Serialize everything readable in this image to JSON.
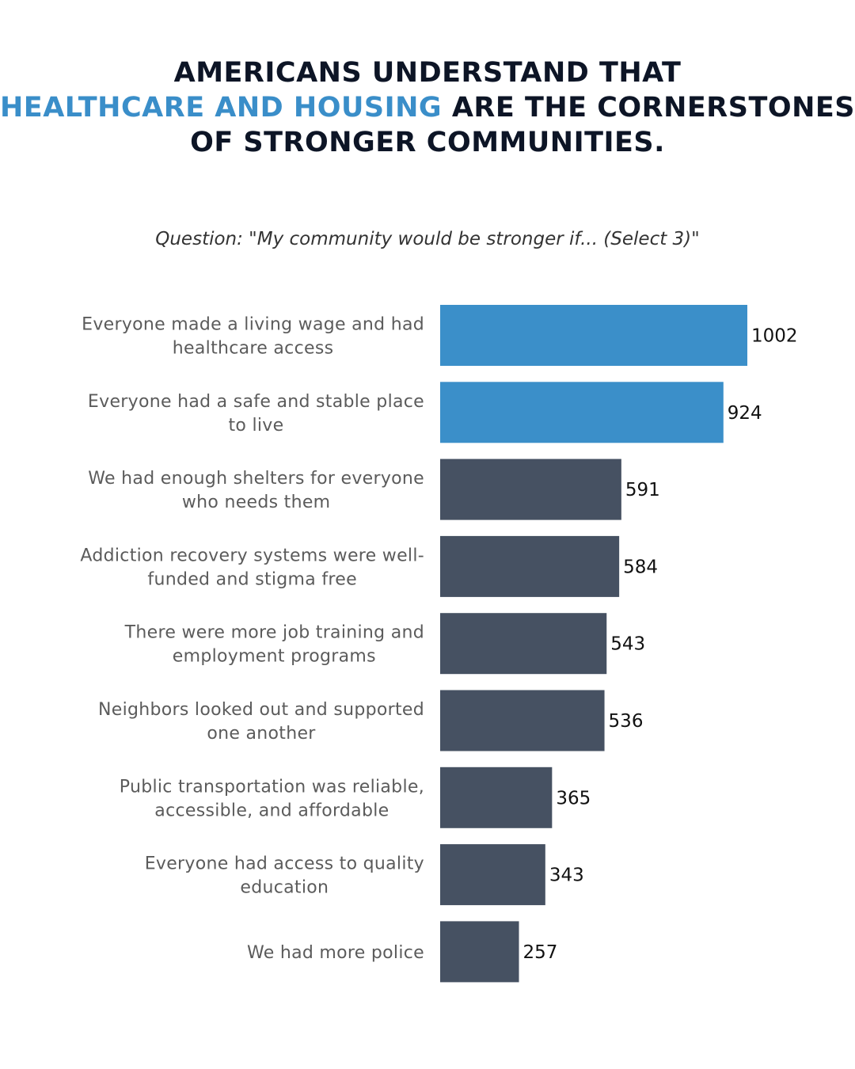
{
  "title": {
    "part1": "AMERICANS UNDERSTAND THAT",
    "highlight": "HEALTHCARE AND HOUSING",
    "part2": "ARE THE CORNERSTONES OF STRONGER COMMUNITIES."
  },
  "subtitle": "Question: \"My community would be stronger if... (Select 3)\"",
  "colors": {
    "highlight_bar": "#3b8fc9",
    "default_bar": "#465162",
    "title_highlight": "#3a8ec9",
    "title_text": "#0d1526"
  },
  "chart_data": {
    "type": "bar",
    "orientation": "horizontal",
    "categories": [
      [
        "Everyone made a living wage and had",
        "healthcare access"
      ],
      [
        "Everyone had a safe and stable place",
        "to live"
      ],
      [
        "We had enough shelters for everyone",
        "who needs them"
      ],
      [
        "Addiction recovery systems were well-",
        "funded and stigma free"
      ],
      [
        "There were more job training and",
        "employment programs"
      ],
      [
        "Neighbors looked out and supported",
        "one another"
      ],
      [
        "Public transportation was reliable,",
        "accessible, and affordable"
      ],
      [
        "Everyone had access to quality",
        "education"
      ],
      [
        "We had more police"
      ]
    ],
    "values": [
      1002,
      924,
      591,
      584,
      543,
      536,
      365,
      343,
      257
    ],
    "highlighted": [
      true,
      true,
      false,
      false,
      false,
      false,
      false,
      false,
      false
    ],
    "data_labels": [
      "1002",
      "924",
      "591",
      "584",
      "543",
      "536",
      "365",
      "343",
      "257"
    ],
    "grid": false,
    "xlim": [
      0,
      1002
    ]
  }
}
